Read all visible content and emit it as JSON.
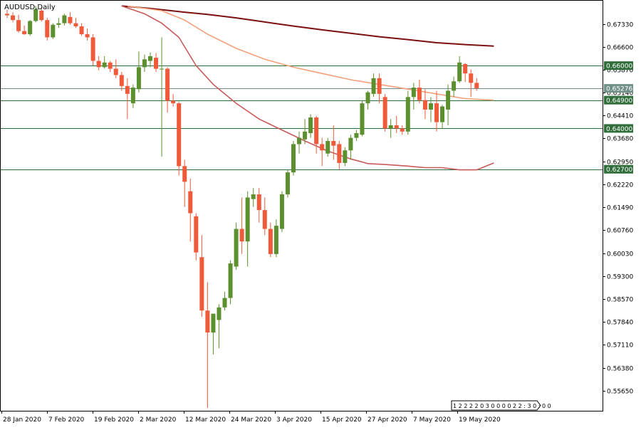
{
  "window": {
    "symbol_label": "AUDUSD,Daily",
    "clock_text": "1 2 2 2 2 0 3  0 0 0 0  2 2 : 3 0 : 0 0"
  },
  "colors": {
    "bull": "#5c8f2e",
    "bear": "#ee5a3a",
    "level_line": "#2f6e3a",
    "ma_dark": "#7a1010",
    "ma_light": "#f2a07a",
    "ma_mid": "#c85a5a",
    "axis": "#000000",
    "background": "#ffffff"
  },
  "chart_data": {
    "type": "candlestick",
    "symbol": "AUDUSD",
    "timeframe": "Daily",
    "ylim": [
      0.5525,
      0.6794
    ],
    "y_ticks": [
      "0.67330",
      "0.66600",
      "0.65870",
      "0.65140",
      "0.64410",
      "0.63680",
      "0.62950",
      "0.62220",
      "0.61490",
      "0.60760",
      "0.60030",
      "0.59300",
      "0.58570",
      "0.57840",
      "0.57110",
      "0.56380",
      "0.55650"
    ],
    "x_labels": [
      "28 Jan 2020",
      "7 Feb 2020",
      "19 Feb 2020",
      "2 Mar 2020",
      "12 Mar 2020",
      "24 Mar 2020",
      "3 Apr 2020",
      "15 Apr 2020",
      "27 Apr 2020",
      "7 May 2020",
      "19 May 2020"
    ],
    "levels": [
      {
        "value": 0.66,
        "label": "0.66000"
      },
      {
        "value": 0.649,
        "label": "0.64900"
      },
      {
        "value": 0.64,
        "label": "0.64000"
      },
      {
        "value": 0.627,
        "label": "0.62700"
      }
    ],
    "current_price": {
      "value": 0.65276,
      "label": "0.65276"
    },
    "candles": [
      [
        0.6765,
        0.6778,
        0.6752,
        0.676
      ],
      [
        0.676,
        0.677,
        0.6738,
        0.6745
      ],
      [
        0.6745,
        0.6762,
        0.6705,
        0.671
      ],
      [
        0.671,
        0.6728,
        0.6698,
        0.67
      ],
      [
        0.67,
        0.6745,
        0.6695,
        0.6742
      ],
      [
        0.6742,
        0.679,
        0.6738,
        0.678
      ],
      [
        0.6775,
        0.6785,
        0.674,
        0.6745
      ],
      [
        0.6745,
        0.6752,
        0.668,
        0.669
      ],
      [
        0.669,
        0.6735,
        0.6685,
        0.673
      ],
      [
        0.673,
        0.6752,
        0.672,
        0.6735
      ],
      [
        0.6735,
        0.6765,
        0.6728,
        0.676
      ],
      [
        0.6755,
        0.677,
        0.673,
        0.6735
      ],
      [
        0.6735,
        0.6752,
        0.672,
        0.6725
      ],
      [
        0.6725,
        0.6735,
        0.6695,
        0.67
      ],
      [
        0.67,
        0.6718,
        0.668,
        0.669
      ],
      [
        0.669,
        0.67,
        0.66,
        0.6615
      ],
      [
        0.6615,
        0.663,
        0.6585,
        0.6595
      ],
      [
        0.6595,
        0.663,
        0.659,
        0.661
      ],
      [
        0.661,
        0.6615,
        0.658,
        0.659
      ],
      [
        0.659,
        0.662,
        0.656,
        0.657
      ],
      [
        0.657,
        0.658,
        0.652,
        0.6535
      ],
      [
        0.6535,
        0.656,
        0.643,
        0.651
      ],
      [
        0.648,
        0.654,
        0.6465,
        0.653
      ],
      [
        0.6525,
        0.6645,
        0.6515,
        0.6595
      ],
      [
        0.6595,
        0.6635,
        0.658,
        0.662
      ],
      [
        0.6615,
        0.6642,
        0.6595,
        0.663
      ],
      [
        0.6625,
        0.664,
        0.658,
        0.659
      ],
      [
        0.659,
        0.669,
        0.631,
        0.659
      ],
      [
        0.659,
        0.6595,
        0.645,
        0.6488
      ],
      [
        0.6488,
        0.651,
        0.647,
        0.648
      ],
      [
        0.648,
        0.6485,
        0.625,
        0.628
      ],
      [
        0.628,
        0.63,
        0.615,
        0.623
      ],
      [
        0.62,
        0.624,
        0.604,
        0.613
      ],
      [
        0.612,
        0.613,
        0.598,
        0.6005
      ],
      [
        0.599,
        0.606,
        0.58,
        0.582
      ],
      [
        0.582,
        0.591,
        0.551,
        0.575
      ],
      [
        0.575,
        0.581,
        0.568,
        0.581
      ],
      [
        0.579,
        0.584,
        0.57,
        0.583
      ],
      [
        0.583,
        0.588,
        0.582,
        0.586
      ],
      [
        0.586,
        0.598,
        0.584,
        0.597
      ],
      [
        0.596,
        0.61,
        0.595,
        0.608
      ],
      [
        0.608,
        0.618,
        0.6,
        0.604
      ],
      [
        0.604,
        0.62,
        0.596,
        0.618
      ],
      [
        0.6175,
        0.621,
        0.615,
        0.619
      ],
      [
        0.619,
        0.621,
        0.61,
        0.614
      ],
      [
        0.614,
        0.618,
        0.606,
        0.608
      ],
      [
        0.608,
        0.61,
        0.599,
        0.6
      ],
      [
        0.6,
        0.611,
        0.599,
        0.609
      ],
      [
        0.608,
        0.62,
        0.607,
        0.619
      ],
      [
        0.619,
        0.627,
        0.618,
        0.626
      ],
      [
        0.626,
        0.636,
        0.625,
        0.635
      ],
      [
        0.635,
        0.639,
        0.632,
        0.637
      ],
      [
        0.6365,
        0.643,
        0.635,
        0.639
      ],
      [
        0.6385,
        0.6445,
        0.637,
        0.6435
      ],
      [
        0.6435,
        0.644,
        0.632,
        0.635
      ],
      [
        0.635,
        0.637,
        0.628,
        0.633
      ],
      [
        0.632,
        0.637,
        0.631,
        0.636
      ],
      [
        0.636,
        0.641,
        0.63,
        0.6345
      ],
      [
        0.635,
        0.636,
        0.627,
        0.629
      ],
      [
        0.629,
        0.634,
        0.628,
        0.633
      ],
      [
        0.633,
        0.638,
        0.63,
        0.637
      ],
      [
        0.637,
        0.6395,
        0.636,
        0.6385
      ],
      [
        0.638,
        0.649,
        0.6375,
        0.648
      ],
      [
        0.648,
        0.652,
        0.646,
        0.6515
      ],
      [
        0.651,
        0.6575,
        0.65,
        0.656
      ],
      [
        0.656,
        0.6575,
        0.648,
        0.651
      ],
      [
        0.65,
        0.651,
        0.639,
        0.64
      ],
      [
        0.64,
        0.643,
        0.637,
        0.641
      ],
      [
        0.641,
        0.644,
        0.6385,
        0.64
      ],
      [
        0.64,
        0.641,
        0.638,
        0.639
      ],
      [
        0.639,
        0.652,
        0.638,
        0.65
      ],
      [
        0.65,
        0.6545,
        0.646,
        0.653
      ],
      [
        0.653,
        0.6555,
        0.648,
        0.649
      ],
      [
        0.649,
        0.6525,
        0.643,
        0.646
      ],
      [
        0.646,
        0.65,
        0.642,
        0.648
      ],
      [
        0.648,
        0.652,
        0.639,
        0.642
      ],
      [
        0.642,
        0.6475,
        0.64,
        0.647
      ],
      [
        0.646,
        0.654,
        0.641,
        0.652
      ],
      [
        0.652,
        0.6565,
        0.65,
        0.655
      ],
      [
        0.655,
        0.663,
        0.6545,
        0.661
      ],
      [
        0.6605,
        0.6608,
        0.6548,
        0.6575
      ],
      [
        0.6575,
        0.6588,
        0.65,
        0.6545
      ],
      [
        0.6545,
        0.656,
        0.652,
        0.6528
      ]
    ],
    "moving_averages": [
      {
        "points": [
          [
            20,
            0.679
          ],
          [
            25,
            0.6782
          ],
          [
            30,
            0.6772
          ],
          [
            35,
            0.6763
          ],
          [
            40,
            0.6752
          ],
          [
            45,
            0.6739
          ],
          [
            50,
            0.6726
          ],
          [
            55,
            0.6714
          ],
          [
            60,
            0.6703
          ],
          [
            65,
            0.6692
          ],
          [
            70,
            0.6683
          ],
          [
            75,
            0.6673
          ],
          [
            80,
            0.6667
          ],
          [
            85,
            0.6662
          ]
        ]
      },
      {
        "points": [
          [
            21,
            0.679
          ],
          [
            27,
            0.6775
          ],
          [
            31,
            0.6745
          ],
          [
            35,
            0.67
          ],
          [
            40,
            0.6655
          ],
          [
            45,
            0.662
          ],
          [
            50,
            0.6595
          ],
          [
            55,
            0.6575
          ],
          [
            60,
            0.6555
          ],
          [
            65,
            0.654
          ],
          [
            70,
            0.6525
          ],
          [
            75,
            0.651
          ],
          [
            80,
            0.6495
          ],
          [
            85,
            0.649
          ]
        ]
      },
      {
        "points": [
          [
            20,
            0.679
          ],
          [
            24,
            0.6765
          ],
          [
            27,
            0.6735
          ],
          [
            30,
            0.669
          ],
          [
            33,
            0.66
          ],
          [
            36,
            0.654
          ],
          [
            40,
            0.648
          ],
          [
            44,
            0.643
          ],
          [
            48,
            0.6395
          ],
          [
            52,
            0.636
          ],
          [
            56,
            0.6328
          ],
          [
            60,
            0.6303
          ],
          [
            63,
            0.6288
          ],
          [
            66,
            0.6285
          ],
          [
            70,
            0.628
          ],
          [
            73,
            0.6275
          ],
          [
            76,
            0.6275
          ],
          [
            79,
            0.6268
          ],
          [
            82,
            0.6268
          ],
          [
            85,
            0.629
          ]
        ]
      }
    ]
  }
}
